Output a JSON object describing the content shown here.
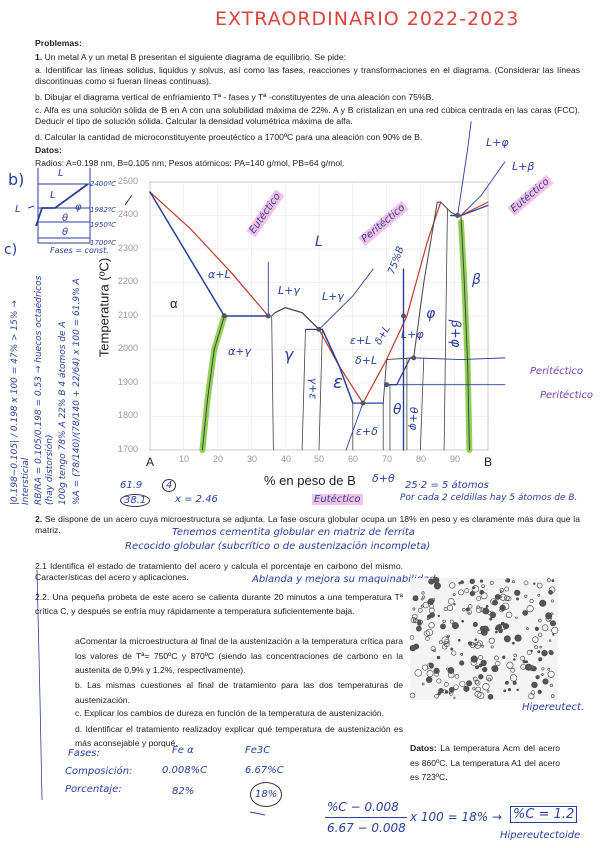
{
  "header": {
    "title": "EXTRAORDINARIO 2022-2023"
  },
  "problems": {
    "heading": "Problemas:",
    "p1": {
      "number": "1.",
      "intro": "Un metal A y un metal B presentan el siguiente diagrama de equilibrio. Se pide:",
      "a": "a. Identificar las líneas solidus, liquidus y solvus, así como las fases, reacciones y transformaciones en el diagrama. (Considerar las líneas discontinuas como si fueran líneas continuas).",
      "b": "b. Dibujar el diagrama vertical de enfriamiento Tª - fases y Tª -constituyentes de una aleación con 75%B.",
      "c": "c. Alfa es una solución sólida de B en A con una solubilidad máxima de 22%. A y B cristalizan en una red cúbica centrada en las caras (FCC). Deducir el tipo de solución sólida. Calcular la densidad volumétrica máxima de alfa.",
      "d": "d. Calcular la cantidad de microconstituyente proeutéctico a 1700ºC para una aleación con 90% de B.",
      "datos_label": "Datos:",
      "datos": "Radios: A=0.198 nm, B=0.105 nm; Pesos atómicos: PA=140 g/mol, PB=64 g/mol."
    },
    "p2": {
      "number": "2.",
      "intro": "Se dispone de un acero cuya microestructura se adjunta. La fase oscura globular ocupa un 18% en peso y es claramente más dura que la matriz.",
      "q21": "2.1 Identifica el estado de tratamiento del acero y calcula el porcentaje en carbono del mismo. Características del acero y aplicaciones.",
      "q22": "2.2. Una pequeña probeta de este acero se calienta durante 20 minutos a una temperatura Tª crítica C, y después se enfría muy rápidamente a temperatura suficientemente baja.",
      "qa": "aComentar la microestructura al final de la austenización a la temperatura crítica para los valores de Tª= 750ºC y 870ºC (siendo las concentraciones de carbono en la austenita de 0,9% y 1.2%, respectivamente).",
      "qb": "b. Las mismas cuestiones al final de tratamiento para las dos temperaturas de austenización.",
      "qc": "c. Explicar los cambios de dureza en función de la temperatura de austenización.",
      "qd": "d. Identificar el tratamiento realizadoy explicar qué temperatura de austenización es más aconsejable y porqué.",
      "datos_label": "Datos:",
      "datos": "La temperatura Acm del acero es 860ºC. La temperatura A1 del acero es 723ºC."
    }
  },
  "diagram": {
    "y_axis_label": "Temperatura (ºC)",
    "x_axis_label": "% en peso de B",
    "x_left": "A",
    "x_right": "B",
    "x_ticks": [
      "10",
      "20",
      "30",
      "40",
      "50",
      "60",
      "70",
      "80",
      "90"
    ],
    "y_ticks": [
      "2500",
      "2400",
      "2300",
      "2200",
      "2100",
      "2000",
      "1900",
      "1800",
      "1700"
    ],
    "alpha_label": "α",
    "highlight_colors": {
      "reaction": "#f07cc8",
      "solvus": "#7cc83a",
      "liquidus": "#c0392b",
      "ink": "#2b3f9c"
    }
  },
  "handwriting": {
    "phase_labels": {
      "a_L": "α+L",
      "a_g": "α+γ",
      "L": "L",
      "L_g1": "L+γ",
      "L_g2": "L+γ",
      "g": "γ",
      "g_e": "γ+ε",
      "e": "ε",
      "e_L": "ε+L",
      "d_L": "δ+L",
      "d_L2": "δ+L",
      "e_d": "ε+δ",
      "th": "θ",
      "th_p": "θ+φ",
      "L_p": "L+φ",
      "p": "φ",
      "b_p": "β+φ",
      "b": "β",
      "b75": "75%B",
      "d_th": "δ+θ"
    },
    "reactions": {
      "eut1": "Eutéctico",
      "per1": "Peritéctico",
      "eut2": "Eutéctico",
      "eut3": "Eutéctico",
      "per2": "Peritéctico",
      "per3": "Peritéctico",
      "Lp": "L+φ",
      "Lb": "L+β"
    },
    "b_part": {
      "label": "b)",
      "L1": "L",
      "L2": "L",
      "L3": "L",
      "phi": "φ",
      "th1": "θ",
      "th2": "θ",
      "t1": "2400ºC",
      "t2": "1982ºC",
      "t3": "1950ºC",
      "t4": "1700ºC",
      "footer": "Fases = const."
    },
    "c_part": {
      "label": "c)",
      "l1": "|0.198−0.105| / 0.198 x 100 = 47% > 15% → Intersticial",
      "l2": "RB/RA = 0.105/0.198 = 0.53 → huecos octaédricos (hay distorsión)",
      "l3": "100g tengo 78% A  22% B   4 átomos de A",
      "l4": "%A = (78/140)/(78/140 + 22/64) x 100 = 61.9% A"
    },
    "calc": {
      "a": "61.9",
      "b": "4",
      "c": "38.1",
      "d": "x = 2.46",
      "e": "25·2 = 5 átomos",
      "f": "Por cada 2 celdillas hay 5 átomos de B."
    },
    "p2_notes": {
      "n1": "Tenemos cementita globular en matriz de ferrita",
      "n2": "Recocido globular (subcrítico o de austenización incompleta)",
      "n3": "Ablanda y mejora su maquinabilidad.",
      "n4": "Hipereutect."
    },
    "table": {
      "rows": [
        {
          "label": "Fases:",
          "c1": "Fe α",
          "c2": "Fe3C"
        },
        {
          "label": "Composición:",
          "c1": "0.008%C",
          "c2": "6.67%C"
        },
        {
          "label": "Porcentaje:",
          "c1": "82%",
          "c2": "18%"
        }
      ]
    },
    "formula": {
      "num": "%C − 0.008",
      "den": "6.67 − 0.008",
      "rhs": "x 100 = 18% →",
      "result": "%C = 1.2",
      "note": "Hipereutectoide"
    }
  }
}
